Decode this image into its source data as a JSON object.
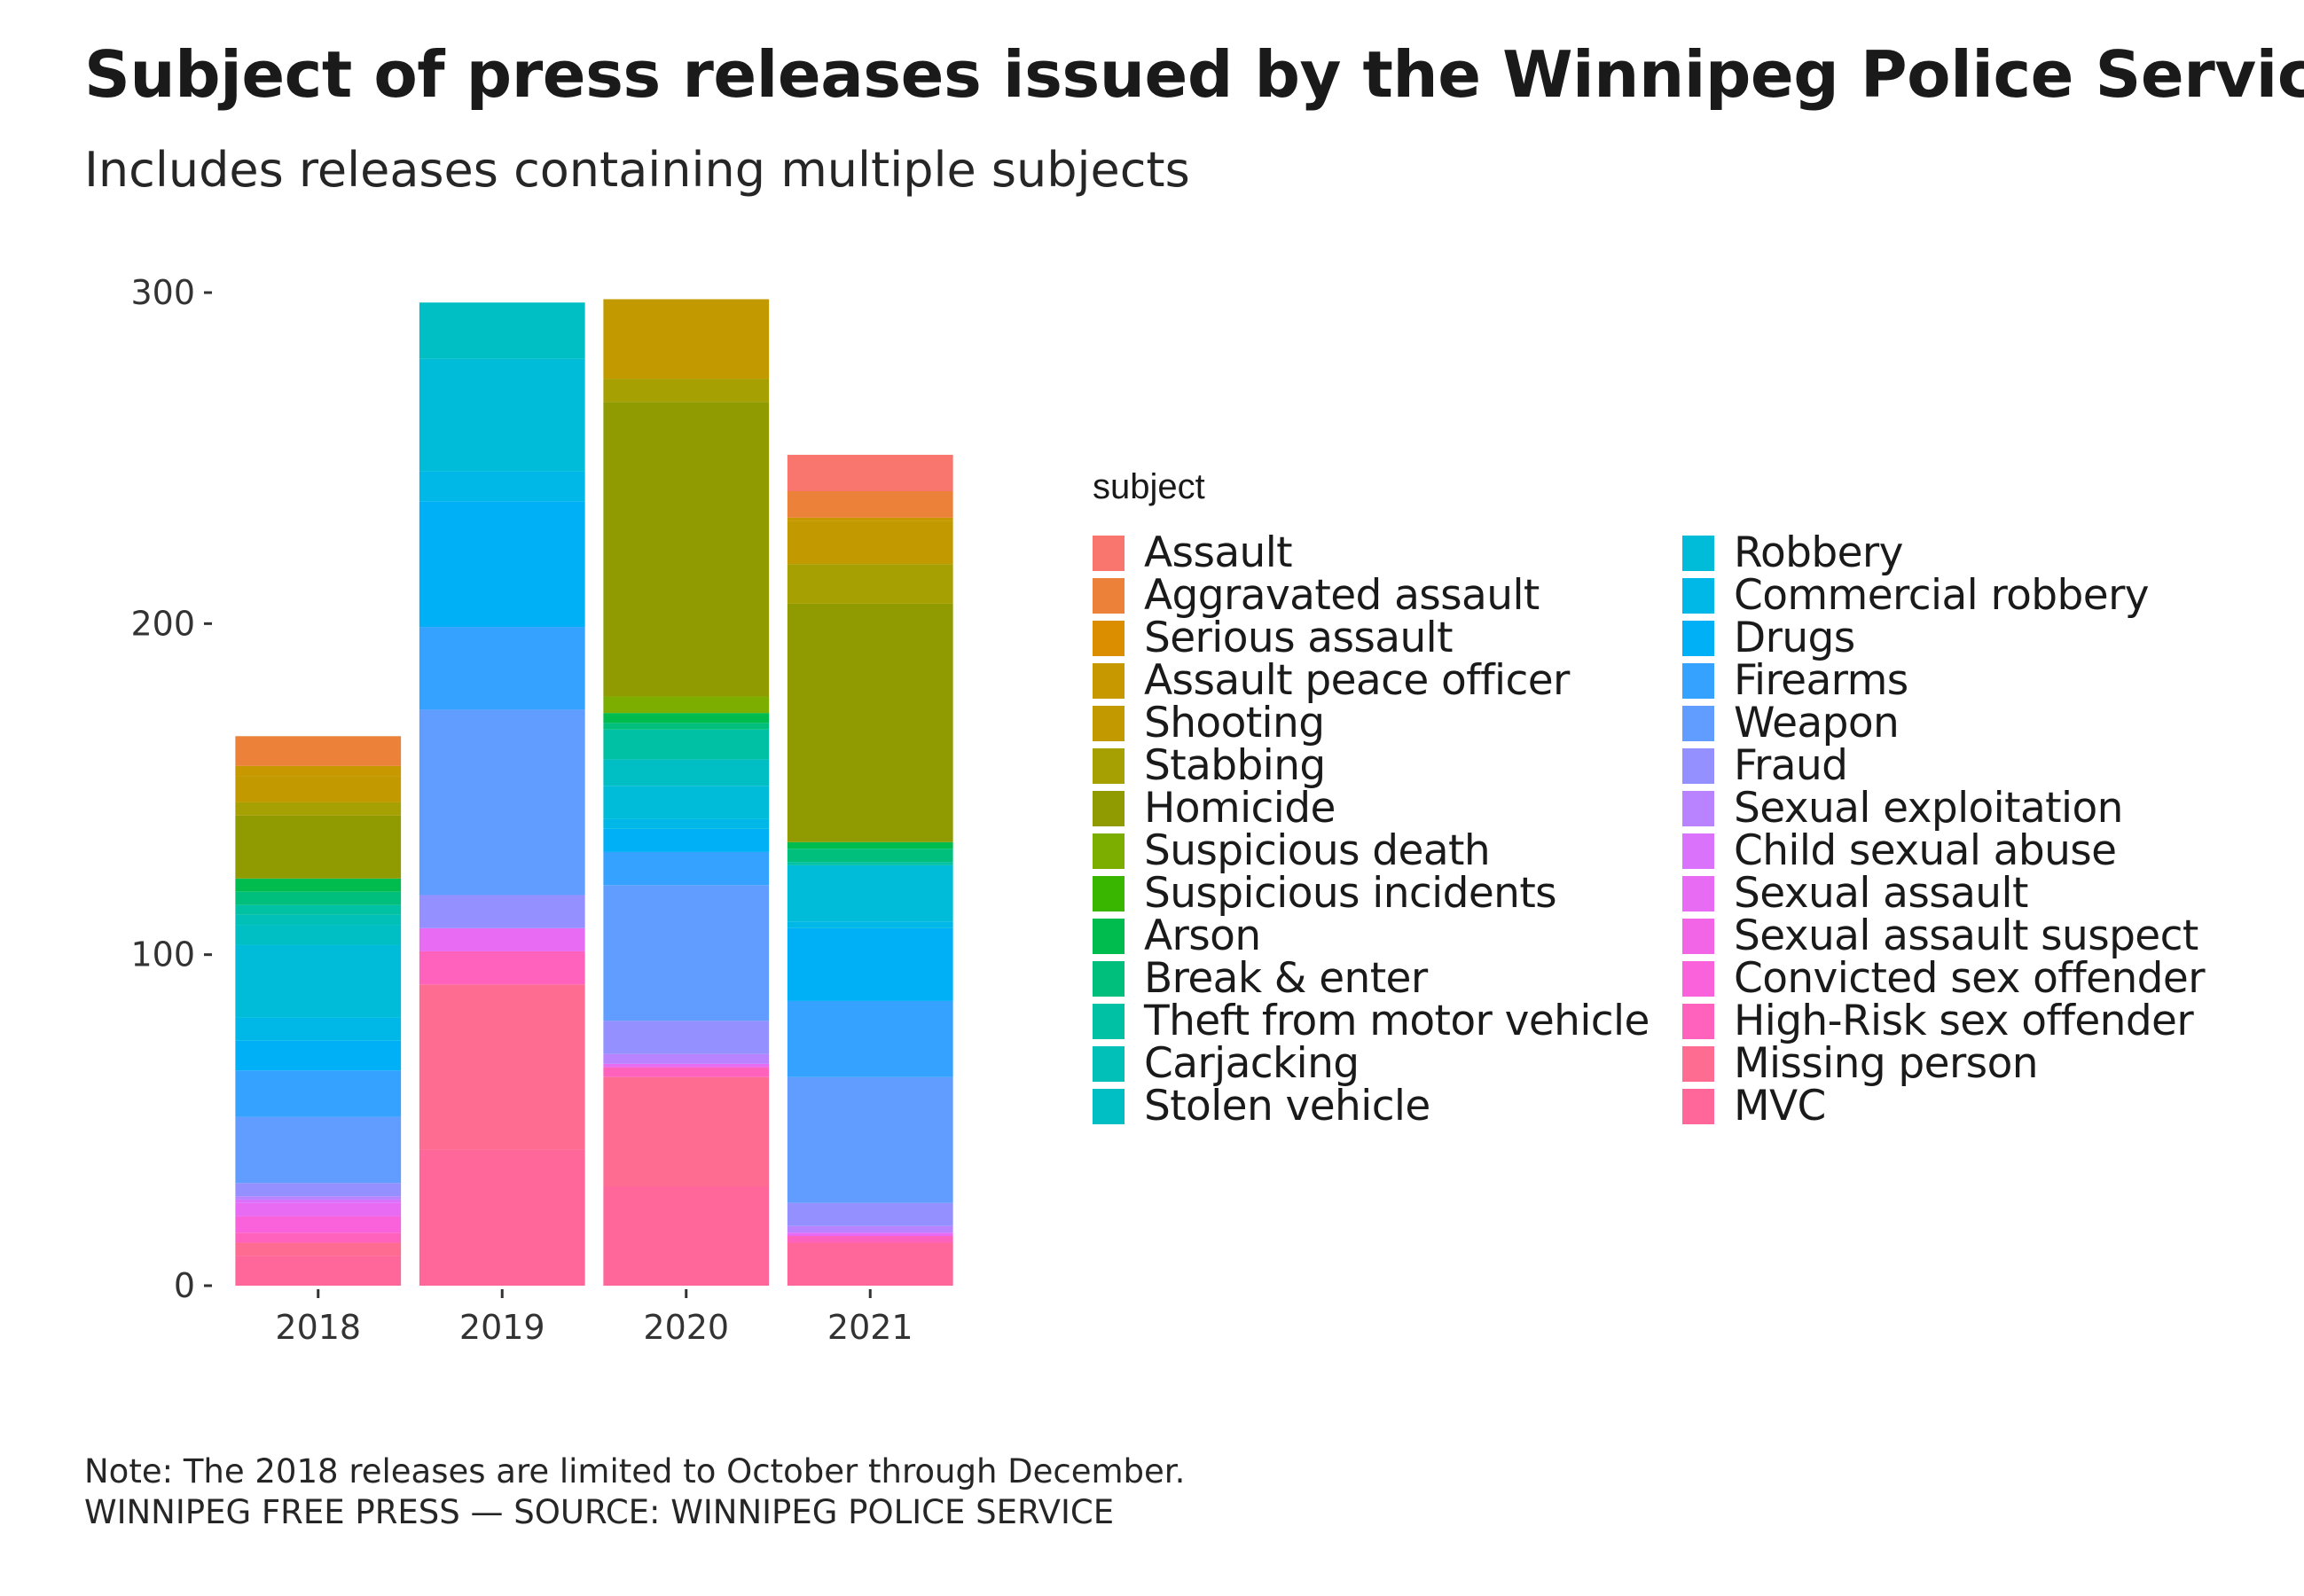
{
  "title": "Subject of press releases issued by the Winnipeg Police Service",
  "subtitle": "Includes releases containing multiple subjects",
  "caption": {
    "note": "Note: The 2018 releases are limited to October through December.",
    "source": "WINNIPEG FREE PRESS — SOURCE: WINNIPEG POLICE SERVICE"
  },
  "chart_data": {
    "type": "bar",
    "stacked": true,
    "categories": [
      "2018",
      "2019",
      "2020",
      "2021"
    ],
    "xlabel": "",
    "ylabel": "",
    "ylim": [
      0,
      300
    ],
    "yticks": [
      0,
      100,
      200,
      300
    ],
    "legend_title": "subject",
    "legend_position": "right",
    "grid": false,
    "series": [
      {
        "name": "Assault",
        "color": "#F8766D",
        "values": [
          0,
          0,
          0,
          11
        ]
      },
      {
        "name": "Aggravated assault",
        "color": "#EC8239",
        "values": [
          9,
          0,
          0,
          8
        ]
      },
      {
        "name": "Serious assault",
        "color": "#DB8E00",
        "values": [
          0,
          0,
          0,
          0
        ]
      },
      {
        "name": "Assault peace officer",
        "color": "#C79800",
        "values": [
          3,
          0,
          0,
          1
        ]
      },
      {
        "name": "Shooting",
        "color": "#C29A00",
        "values": [
          8,
          0,
          24,
          13
        ]
      },
      {
        "name": "Stabbing",
        "color": "#A7A003",
        "values": [
          4,
          0,
          7,
          12
        ]
      },
      {
        "name": "Homicide",
        "color": "#8F9B00",
        "values": [
          19,
          0,
          89,
          72
        ]
      },
      {
        "name": "Suspicious death",
        "color": "#7CAE00",
        "values": [
          0,
          0,
          5,
          0
        ]
      },
      {
        "name": "Suspicious incidents",
        "color": "#39B600",
        "values": [
          0,
          0,
          0,
          0
        ]
      },
      {
        "name": "Arson",
        "color": "#00BB4E",
        "values": [
          4,
          0,
          3,
          2
        ]
      },
      {
        "name": "Break & enter",
        "color": "#00BF7D",
        "values": [
          4,
          0,
          2,
          4
        ]
      },
      {
        "name": "Theft from motor vehicle",
        "color": "#00C1A3",
        "values": [
          3,
          0,
          9,
          1
        ]
      },
      {
        "name": "Carjacking",
        "color": "#00C0B8",
        "values": [
          3,
          0,
          0,
          0
        ]
      },
      {
        "name": "Stolen vehicle",
        "color": "#00BFC4",
        "values": [
          6,
          17,
          8,
          0
        ]
      },
      {
        "name": "Robbery",
        "color": "#00BCD8",
        "values": [
          22,
          34,
          10,
          17
        ]
      },
      {
        "name": "Commercial robbery",
        "color": "#00B8E7",
        "values": [
          7,
          9,
          3,
          2
        ]
      },
      {
        "name": "Drugs",
        "color": "#00B0F6",
        "values": [
          9,
          38,
          7,
          22
        ]
      },
      {
        "name": "Firearms",
        "color": "#35A2FF",
        "values": [
          14,
          25,
          10,
          23
        ]
      },
      {
        "name": "Weapon",
        "color": "#619CFF",
        "values": [
          20,
          56,
          41,
          38
        ]
      },
      {
        "name": "Fraud",
        "color": "#9590FF",
        "values": [
          4,
          10,
          10,
          7
        ]
      },
      {
        "name": "Sexual exploitation",
        "color": "#B983FF",
        "values": [
          1,
          0,
          3,
          2
        ]
      },
      {
        "name": "Child sexual abuse",
        "color": "#DB72FB",
        "values": [
          1,
          0,
          0,
          0
        ]
      },
      {
        "name": "Sexual assault",
        "color": "#E76BF3",
        "values": [
          4,
          7,
          1,
          1
        ]
      },
      {
        "name": "Sexual assault suspect",
        "color": "#F265E7",
        "values": [
          0,
          0,
          0,
          0
        ]
      },
      {
        "name": "Convicted sex offender",
        "color": "#FA62DB",
        "values": [
          5,
          0,
          0,
          0
        ]
      },
      {
        "name": "High-Risk sex offender",
        "color": "#FF62BC",
        "values": [
          3,
          10,
          3,
          2
        ]
      },
      {
        "name": "Missing person",
        "color": "#FF6C91",
        "values": [
          4,
          50,
          33,
          0
        ]
      },
      {
        "name": "MVC",
        "color": "#FF6699",
        "values": [
          9,
          41,
          30,
          13
        ]
      }
    ]
  }
}
